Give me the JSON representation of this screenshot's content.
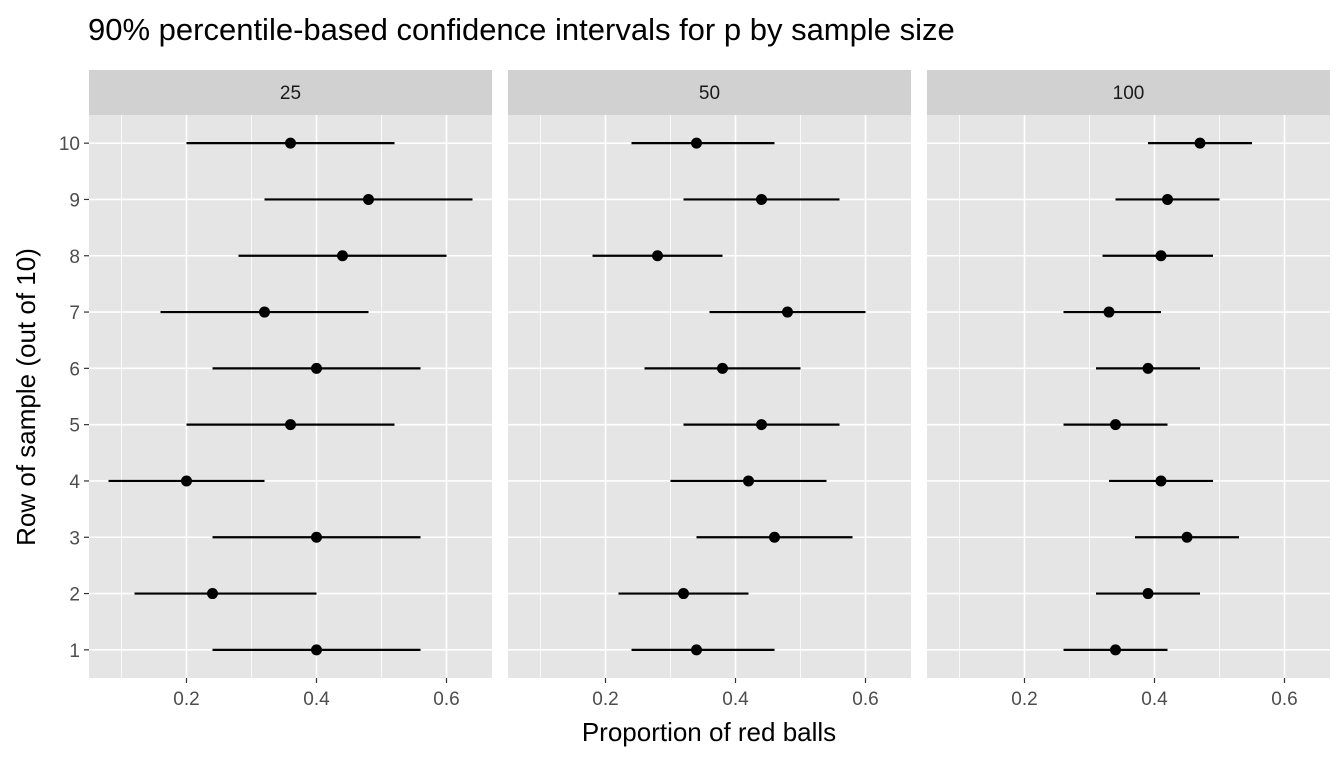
{
  "chart_data": {
    "type": "errorbar",
    "title": "90% percentile-based confidence intervals for p by sample size",
    "xlabel": "Proportion of red balls",
    "ylabel": "Row of sample (out of 10)",
    "xlim": [
      0.05,
      0.67
    ],
    "ylim": [
      0.5,
      10.5
    ],
    "xticks": [
      0.2,
      0.4,
      0.6
    ],
    "xtick_labels": [
      "0.2",
      "0.4",
      "0.6"
    ],
    "yticks": [
      1,
      2,
      3,
      4,
      5,
      6,
      7,
      8,
      9,
      10
    ],
    "ytick_labels": [
      "1",
      "2",
      "3",
      "4",
      "5",
      "6",
      "7",
      "8",
      "9",
      "10"
    ],
    "grid": true,
    "panels": [
      {
        "label": "25",
        "rows": [
          {
            "row": 1,
            "point": 0.4,
            "lower": 0.24,
            "upper": 0.56
          },
          {
            "row": 2,
            "point": 0.24,
            "lower": 0.12,
            "upper": 0.4
          },
          {
            "row": 3,
            "point": 0.4,
            "lower": 0.24,
            "upper": 0.56
          },
          {
            "row": 4,
            "point": 0.2,
            "lower": 0.08,
            "upper": 0.32
          },
          {
            "row": 5,
            "point": 0.36,
            "lower": 0.2,
            "upper": 0.52
          },
          {
            "row": 6,
            "point": 0.4,
            "lower": 0.24,
            "upper": 0.56
          },
          {
            "row": 7,
            "point": 0.32,
            "lower": 0.16,
            "upper": 0.48
          },
          {
            "row": 8,
            "point": 0.44,
            "lower": 0.28,
            "upper": 0.6
          },
          {
            "row": 9,
            "point": 0.48,
            "lower": 0.32,
            "upper": 0.64
          },
          {
            "row": 10,
            "point": 0.36,
            "lower": 0.2,
            "upper": 0.52
          }
        ]
      },
      {
        "label": "50",
        "rows": [
          {
            "row": 1,
            "point": 0.34,
            "lower": 0.24,
            "upper": 0.46
          },
          {
            "row": 2,
            "point": 0.32,
            "lower": 0.22,
            "upper": 0.42
          },
          {
            "row": 3,
            "point": 0.46,
            "lower": 0.34,
            "upper": 0.58
          },
          {
            "row": 4,
            "point": 0.42,
            "lower": 0.3,
            "upper": 0.54
          },
          {
            "row": 5,
            "point": 0.44,
            "lower": 0.32,
            "upper": 0.56
          },
          {
            "row": 6,
            "point": 0.38,
            "lower": 0.26,
            "upper": 0.5
          },
          {
            "row": 7,
            "point": 0.48,
            "lower": 0.36,
            "upper": 0.6
          },
          {
            "row": 8,
            "point": 0.28,
            "lower": 0.18,
            "upper": 0.38
          },
          {
            "row": 9,
            "point": 0.44,
            "lower": 0.32,
            "upper": 0.56
          },
          {
            "row": 10,
            "point": 0.34,
            "lower": 0.24,
            "upper": 0.46
          }
        ]
      },
      {
        "label": "100",
        "rows": [
          {
            "row": 1,
            "point": 0.34,
            "lower": 0.26,
            "upper": 0.42
          },
          {
            "row": 2,
            "point": 0.39,
            "lower": 0.31,
            "upper": 0.47
          },
          {
            "row": 3,
            "point": 0.45,
            "lower": 0.37,
            "upper": 0.53
          },
          {
            "row": 4,
            "point": 0.41,
            "lower": 0.33,
            "upper": 0.49
          },
          {
            "row": 5,
            "point": 0.34,
            "lower": 0.26,
            "upper": 0.42
          },
          {
            "row": 6,
            "point": 0.39,
            "lower": 0.31,
            "upper": 0.47
          },
          {
            "row": 7,
            "point": 0.33,
            "lower": 0.26,
            "upper": 0.41
          },
          {
            "row": 8,
            "point": 0.41,
            "lower": 0.32,
            "upper": 0.49
          },
          {
            "row": 9,
            "point": 0.42,
            "lower": 0.34,
            "upper": 0.5
          },
          {
            "row": 10,
            "point": 0.47,
            "lower": 0.39,
            "upper": 0.55
          }
        ]
      }
    ],
    "colors": {
      "panel_background": "#e5e5e5",
      "grid": "#ffffff",
      "strip_background": "#d1d1d1",
      "marks": "#000000",
      "tick_text": "#4d4d4d"
    }
  }
}
